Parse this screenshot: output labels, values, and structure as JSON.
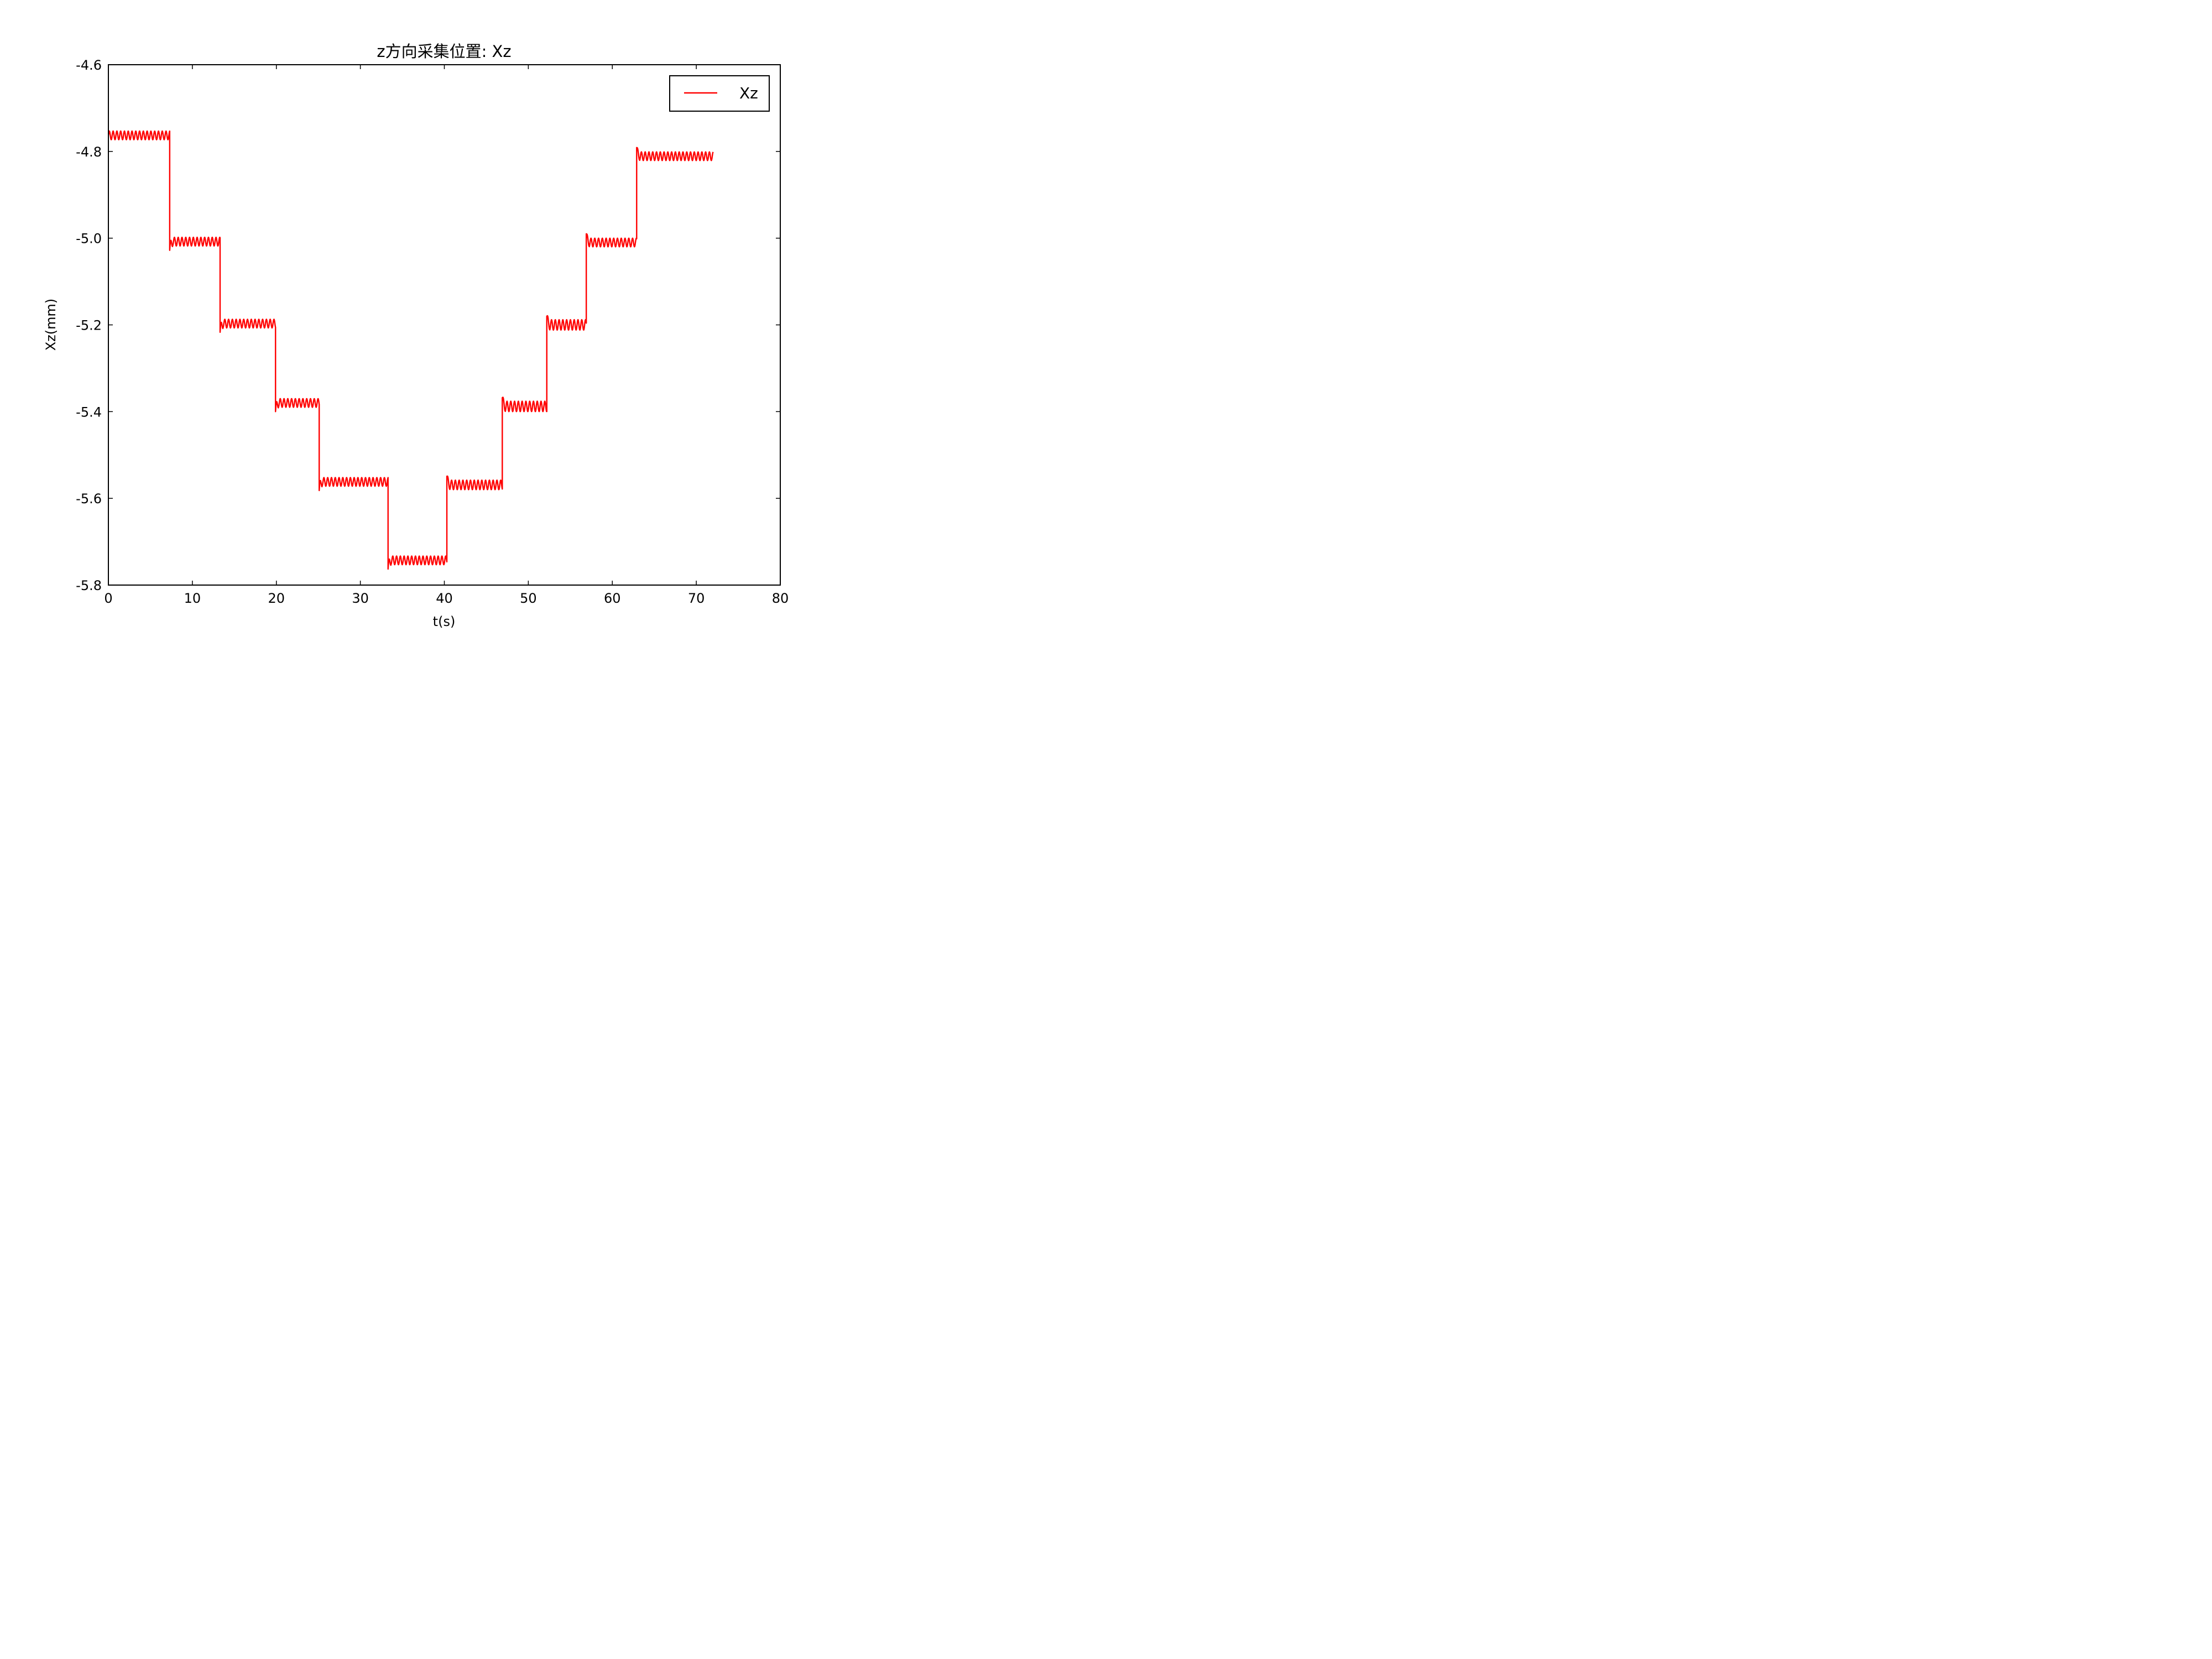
{
  "chart_data": {
    "type": "line",
    "title": "z方向采集位置: Xz",
    "xlabel": "t(s)",
    "ylabel": "Xz(mm)",
    "xlim": [
      0,
      80
    ],
    "ylim": [
      -5.8,
      -4.6
    ],
    "xticks": [
      0,
      10,
      20,
      30,
      40,
      50,
      60,
      70,
      80
    ],
    "yticks": [
      -4.6,
      -4.8,
      -5.0,
      -5.2,
      -5.4,
      -5.6,
      -5.8
    ],
    "xtick_labels": [
      "0",
      "10",
      "20",
      "30",
      "40",
      "50",
      "60",
      "70",
      "80"
    ],
    "ytick_labels": [
      "-4.6",
      "-4.8",
      "-5.0",
      "-5.2",
      "-5.4",
      "-5.6",
      "-5.8"
    ],
    "grid": false,
    "legend": {
      "position": "upper right",
      "entries": [
        "Xz"
      ]
    },
    "series": [
      {
        "name": "Xz",
        "color": "#ff0000",
        "x_end": 72,
        "steps": [
          {
            "t_start": 0.0,
            "t_end": 7.3,
            "level": -4.763,
            "amplitude": 0.01
          },
          {
            "t_start": 7.3,
            "t_end": 13.3,
            "level": -5.008,
            "amplitude": 0.01
          },
          {
            "t_start": 13.3,
            "t_end": 19.9,
            "level": -5.197,
            "amplitude": 0.01
          },
          {
            "t_start": 19.9,
            "t_end": 25.1,
            "level": -5.38,
            "amplitude": 0.01
          },
          {
            "t_start": 25.1,
            "t_end": 33.3,
            "level": -5.562,
            "amplitude": 0.01
          },
          {
            "t_start": 33.3,
            "t_end": 40.3,
            "level": -5.743,
            "amplitude": 0.01
          },
          {
            "t_start": 40.3,
            "t_end": 46.9,
            "level": -5.569,
            "amplitude": 0.011
          },
          {
            "t_start": 46.9,
            "t_end": 52.2,
            "level": -5.388,
            "amplitude": 0.012
          },
          {
            "t_start": 52.2,
            "t_end": 56.9,
            "level": -5.2,
            "amplitude": 0.012
          },
          {
            "t_start": 56.9,
            "t_end": 62.9,
            "level": -5.01,
            "amplitude": 0.01
          },
          {
            "t_start": 62.9,
            "t_end": 72.0,
            "level": -4.811,
            "amplitude": 0.01
          }
        ]
      }
    ]
  }
}
